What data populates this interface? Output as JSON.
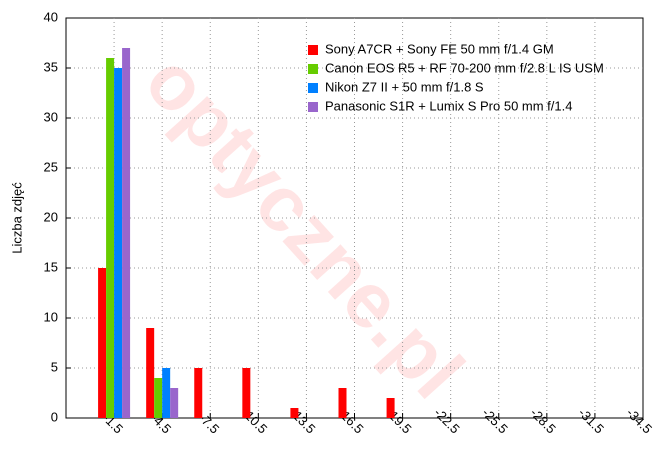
{
  "chart_data": {
    "type": "bar",
    "ylabel": "Liczba zdjęć",
    "watermark": "optyczne.pl",
    "categories": [
      "-1.5",
      "-4.5",
      "-7.5",
      "-10.5",
      "-13.5",
      "-16.5",
      "-19.5",
      "-22.5",
      "-25.5",
      "-28.5",
      "-31.5",
      "-34.5"
    ],
    "series": [
      {
        "name": "Sony A7CR + Sony FE 50 mm f/1.4 GM",
        "color": "#ff0000",
        "values": [
          15,
          9,
          5,
          5,
          1,
          3,
          2,
          0,
          0,
          0,
          0,
          0
        ]
      },
      {
        "name": "Canon EOS R5 + RF 70-200 mm f/2.8 L IS USM",
        "color": "#66cc00",
        "values": [
          36,
          4,
          0,
          0,
          0,
          0,
          0,
          0,
          0,
          0,
          0,
          0
        ]
      },
      {
        "name": "Nikon Z7 II + 50 mm f/1.8 S",
        "color": "#0080ff",
        "values": [
          35,
          5,
          0,
          0,
          0,
          0,
          0,
          0,
          0,
          0,
          0,
          0
        ]
      },
      {
        "name": "Panasonic S1R + Lumix S Pro 50 mm f/1.4",
        "color": "#9966cc",
        "values": [
          37,
          3,
          0,
          0,
          0,
          0,
          0,
          0,
          0,
          0,
          0,
          0
        ]
      }
    ],
    "ylim": [
      0,
      40
    ],
    "yticks": [
      0,
      5,
      10,
      15,
      20,
      25,
      30,
      35,
      40
    ],
    "grid": true,
    "legend": "upper right"
  }
}
